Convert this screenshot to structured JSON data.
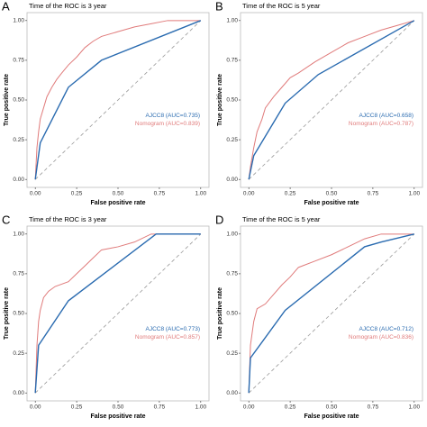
{
  "chart_data": [
    {
      "type": "line",
      "panel": "A",
      "title": "Time of the ROC is 3 year",
      "xlabel": "False positive rate",
      "ylabel": "True positive rate",
      "xlim": [
        -0.05,
        1.05
      ],
      "ylim": [
        -0.05,
        1.05
      ],
      "xticks": [
        {
          "value": 0,
          "label": "0.00"
        },
        {
          "value": 0.25,
          "label": "0.25"
        },
        {
          "value": 0.5,
          "label": "0.50"
        },
        {
          "value": 0.75,
          "label": "0.75"
        },
        {
          "value": 1,
          "label": "1.00"
        }
      ],
      "yticks": [
        {
          "value": 0,
          "label": "0.00"
        },
        {
          "value": 0.25,
          "label": "0.25"
        },
        {
          "value": 0.5,
          "label": "0.50"
        },
        {
          "value": 0.75,
          "label": "0.75"
        },
        {
          "value": 1,
          "label": "1.00"
        }
      ],
      "series": [
        {
          "name": "Nomogram (AUC=0.839)",
          "color": "#e07b7b",
          "x": [
            0,
            0.01,
            0.02,
            0.03,
            0.05,
            0.07,
            0.1,
            0.13,
            0.16,
            0.2,
            0.25,
            0.3,
            0.35,
            0.4,
            0.5,
            0.6,
            0.7,
            0.8,
            1
          ],
          "values": [
            0,
            0.2,
            0.3,
            0.38,
            0.45,
            0.52,
            0.58,
            0.63,
            0.67,
            0.72,
            0.77,
            0.83,
            0.87,
            0.9,
            0.93,
            0.96,
            0.98,
            1,
            1
          ]
        },
        {
          "name": "AJCC8 (AUC=0.735)",
          "color": "#2a6bb0",
          "x": [
            0,
            0.03,
            0.2,
            0.4,
            1
          ],
          "values": [
            0,
            0.23,
            0.58,
            0.75,
            1
          ]
        }
      ]
    },
    {
      "type": "line",
      "panel": "B",
      "title": "Time of the ROC is 5 year",
      "xlabel": "False positive rate",
      "ylabel": "True positive rate",
      "xlim": [
        -0.05,
        1.05
      ],
      "ylim": [
        -0.05,
        1.05
      ],
      "xticks": [
        {
          "value": 0,
          "label": "0.00"
        },
        {
          "value": 0.25,
          "label": "0.25"
        },
        {
          "value": 0.5,
          "label": "0.50"
        },
        {
          "value": 0.75,
          "label": "0.75"
        },
        {
          "value": 1,
          "label": "1.00"
        }
      ],
      "yticks": [
        {
          "value": 0,
          "label": "0.00"
        },
        {
          "value": 0.25,
          "label": "0.25"
        },
        {
          "value": 0.5,
          "label": "0.50"
        },
        {
          "value": 0.75,
          "label": "0.75"
        },
        {
          "value": 1,
          "label": "1.00"
        }
      ],
      "series": [
        {
          "name": "Nomogram (AUC=0.787)",
          "color": "#e07b7b",
          "x": [
            0,
            0.01,
            0.03,
            0.05,
            0.08,
            0.1,
            0.15,
            0.2,
            0.25,
            0.3,
            0.4,
            0.5,
            0.6,
            0.7,
            0.8,
            0.9,
            1
          ],
          "values": [
            0,
            0.08,
            0.2,
            0.3,
            0.38,
            0.45,
            0.52,
            0.58,
            0.64,
            0.67,
            0.74,
            0.8,
            0.86,
            0.9,
            0.94,
            0.97,
            1
          ]
        },
        {
          "name": "AJCC8 (AUC=0.658)",
          "color": "#2a6bb0",
          "x": [
            0,
            0.03,
            0.22,
            0.42,
            1
          ],
          "values": [
            0,
            0.15,
            0.48,
            0.66,
            1
          ]
        }
      ]
    },
    {
      "type": "line",
      "panel": "C",
      "title": "Time of the ROC is 3 year",
      "xlabel": "False positive rate",
      "ylabel": "True positive rate",
      "xlim": [
        -0.05,
        1.05
      ],
      "ylim": [
        -0.05,
        1.05
      ],
      "xticks": [
        {
          "value": 0,
          "label": "0.00"
        },
        {
          "value": 0.25,
          "label": "0.25"
        },
        {
          "value": 0.5,
          "label": "0.50"
        },
        {
          "value": 0.75,
          "label": "0.75"
        },
        {
          "value": 1,
          "label": "1.00"
        }
      ],
      "yticks": [
        {
          "value": 0,
          "label": "0.00"
        },
        {
          "value": 0.25,
          "label": "0.25"
        },
        {
          "value": 0.5,
          "label": "0.50"
        },
        {
          "value": 0.75,
          "label": "0.75"
        },
        {
          "value": 1,
          "label": "1.00"
        }
      ],
      "series": [
        {
          "name": "Nomogram (AUC=0.857)",
          "color": "#e07b7b",
          "x": [
            0,
            0.01,
            0.02,
            0.03,
            0.05,
            0.08,
            0.12,
            0.2,
            0.25,
            0.3,
            0.35,
            0.4,
            0.5,
            0.6,
            0.7,
            1
          ],
          "values": [
            0,
            0.3,
            0.45,
            0.52,
            0.6,
            0.64,
            0.67,
            0.7,
            0.75,
            0.8,
            0.85,
            0.9,
            0.92,
            0.95,
            1,
            1
          ]
        },
        {
          "name": "AJCC8 (AUC=0.773)",
          "color": "#2a6bb0",
          "x": [
            0,
            0.02,
            0.2,
            0.73,
            1
          ],
          "values": [
            0,
            0.3,
            0.58,
            1,
            1
          ]
        }
      ]
    },
    {
      "type": "line",
      "panel": "D",
      "title": "Time of the ROC is 5 year",
      "xlabel": "False positive rate",
      "ylabel": "True positive rate",
      "xlim": [
        -0.05,
        1.05
      ],
      "ylim": [
        -0.05,
        1.05
      ],
      "xticks": [
        {
          "value": 0,
          "label": "0.00"
        },
        {
          "value": 0.25,
          "label": "0.25"
        },
        {
          "value": 0.5,
          "label": "0.50"
        },
        {
          "value": 0.75,
          "label": "0.75"
        },
        {
          "value": 1,
          "label": "1.00"
        }
      ],
      "yticks": [
        {
          "value": 0,
          "label": "0.00"
        },
        {
          "value": 0.25,
          "label": "0.25"
        },
        {
          "value": 0.5,
          "label": "0.50"
        },
        {
          "value": 0.75,
          "label": "0.75"
        },
        {
          "value": 1,
          "label": "1.00"
        }
      ],
      "series": [
        {
          "name": "Nomogram (AUC=0.836)",
          "color": "#e07b7b",
          "x": [
            0,
            0.01,
            0.03,
            0.05,
            0.1,
            0.15,
            0.2,
            0.25,
            0.3,
            0.4,
            0.5,
            0.6,
            0.7,
            0.8,
            1
          ],
          "values": [
            0,
            0.3,
            0.45,
            0.53,
            0.56,
            0.62,
            0.68,
            0.73,
            0.79,
            0.83,
            0.87,
            0.92,
            0.97,
            1,
            1
          ]
        },
        {
          "name": "AJCC8 (AUC=0.712)",
          "color": "#2a6bb0",
          "x": [
            0,
            0.01,
            0.22,
            0.7,
            0.8,
            1
          ],
          "values": [
            0,
            0.22,
            0.52,
            0.92,
            0.95,
            1
          ]
        }
      ]
    }
  ]
}
